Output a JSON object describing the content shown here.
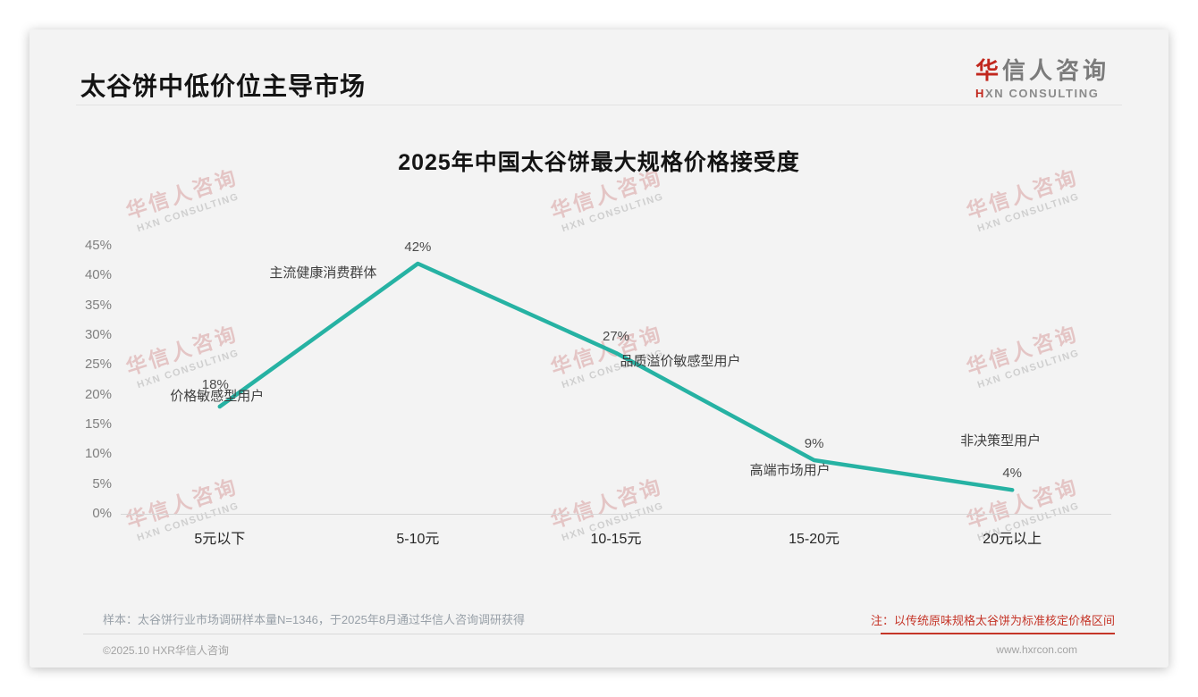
{
  "page": {
    "background": "#ffffff",
    "card_background": "#f3f3f3"
  },
  "header": {
    "title": "太谷饼中低价位主导市场",
    "logo": {
      "cn_accent": "华",
      "cn_rest": "信人咨询",
      "en_accent": "H",
      "en_rest": "XN CONSULTING"
    }
  },
  "watermark": {
    "cn": "华信人咨询",
    "en": "HXN CONSULTING"
  },
  "chart_data": {
    "type": "line",
    "title": "2025年中国太谷饼最大规格价格接受度",
    "categories": [
      "5元以下",
      "5-10元",
      "10-15元",
      "15-20元",
      "20元以上"
    ],
    "values": [
      18,
      42,
      27,
      9,
      4
    ],
    "value_labels": [
      "18%",
      "42%",
      "27%",
      "9%",
      "4%"
    ],
    "point_annotations": [
      "价格敏感型用户",
      "主流健康消费群体",
      "品质溢价敏感型用户",
      "高端市场用户",
      "非决策型用户"
    ],
    "yticks": [
      "45%",
      "40%",
      "35%",
      "30%",
      "25%",
      "20%",
      "15%",
      "10%",
      "5%",
      "0%"
    ],
    "ylim": [
      0,
      45
    ],
    "ytick_step": 5,
    "xlabel": "",
    "ylabel": "",
    "grid": false,
    "legend": "none",
    "line_color": "#26b2a3"
  },
  "footer": {
    "sample_note": "样本：太谷饼行业市场调研样本量N=1346，于2025年8月通过华信人咨询调研获得",
    "price_note": "注：以传统原味规格太谷饼为标准核定价格区间",
    "copyright": "©2025.10 HXR华信人咨询",
    "website": "www.hxrcon.com"
  }
}
